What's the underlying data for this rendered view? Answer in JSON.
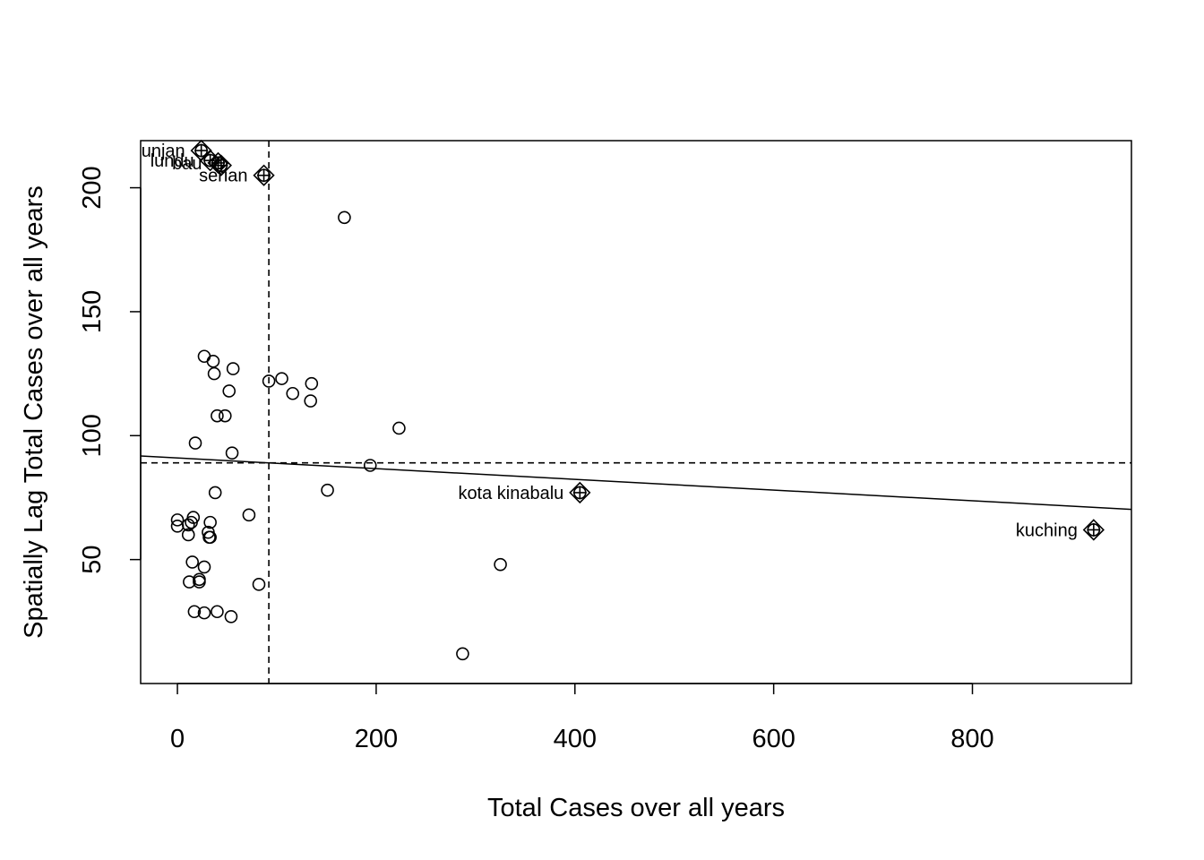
{
  "chart_data": {
    "type": "scatter",
    "xlabel": "Total Cases over all years",
    "ylabel": "Spatially Lag Total Cases over all years",
    "xlim": [
      -37,
      960
    ],
    "ylim": [
      0,
      219
    ],
    "xticks": [
      0,
      200,
      400,
      600,
      800
    ],
    "yticks": [
      50,
      100,
      150,
      200
    ],
    "grid": false,
    "mean_x": 92,
    "mean_y": 89,
    "regression_line": {
      "intercept": 91.0,
      "slope": -0.0216
    },
    "points": [
      {
        "x": 0,
        "y": 66
      },
      {
        "x": 0,
        "y": 63.5
      },
      {
        "x": 11,
        "y": 60
      },
      {
        "x": 11,
        "y": 64
      },
      {
        "x": 14,
        "y": 65
      },
      {
        "x": 16,
        "y": 67
      },
      {
        "x": 15,
        "y": 49
      },
      {
        "x": 12,
        "y": 41
      },
      {
        "x": 22,
        "y": 42
      },
      {
        "x": 22,
        "y": 41
      },
      {
        "x": 27,
        "y": 47
      },
      {
        "x": 17,
        "y": 29
      },
      {
        "x": 27,
        "y": 28.5
      },
      {
        "x": 40,
        "y": 29
      },
      {
        "x": 54,
        "y": 27
      },
      {
        "x": 32,
        "y": 59
      },
      {
        "x": 31,
        "y": 61
      },
      {
        "x": 33,
        "y": 59
      },
      {
        "x": 33,
        "y": 65
      },
      {
        "x": 38,
        "y": 77
      },
      {
        "x": 72,
        "y": 68
      },
      {
        "x": 82,
        "y": 40
      },
      {
        "x": 18,
        "y": 97
      },
      {
        "x": 55,
        "y": 93
      },
      {
        "x": 40,
        "y": 108
      },
      {
        "x": 48,
        "y": 108
      },
      {
        "x": 52,
        "y": 118
      },
      {
        "x": 37,
        "y": 125
      },
      {
        "x": 36,
        "y": 130
      },
      {
        "x": 27,
        "y": 132
      },
      {
        "x": 56,
        "y": 127
      },
      {
        "x": 92,
        "y": 122
      },
      {
        "x": 105,
        "y": 123
      },
      {
        "x": 116,
        "y": 117
      },
      {
        "x": 135,
        "y": 121
      },
      {
        "x": 134,
        "y": 114
      },
      {
        "x": 168,
        "y": 188
      },
      {
        "x": 151,
        "y": 78
      },
      {
        "x": 194,
        "y": 88
      },
      {
        "x": 223,
        "y": 103
      },
      {
        "x": 287,
        "y": 12
      },
      {
        "x": 325,
        "y": 48
      }
    ],
    "influential": [
      {
        "x": 24,
        "y": 215,
        "label": "unjan"
      },
      {
        "x": 33,
        "y": 211,
        "label": "lundu"
      },
      {
        "x": 41,
        "y": 210,
        "label": "bau"
      },
      {
        "x": 44,
        "y": 209,
        "label": ""
      },
      {
        "x": 87,
        "y": 205,
        "label": "serian"
      },
      {
        "x": 405,
        "y": 77,
        "label": "kota kinabalu"
      },
      {
        "x": 922,
        "y": 62,
        "label": "kuching"
      }
    ]
  }
}
